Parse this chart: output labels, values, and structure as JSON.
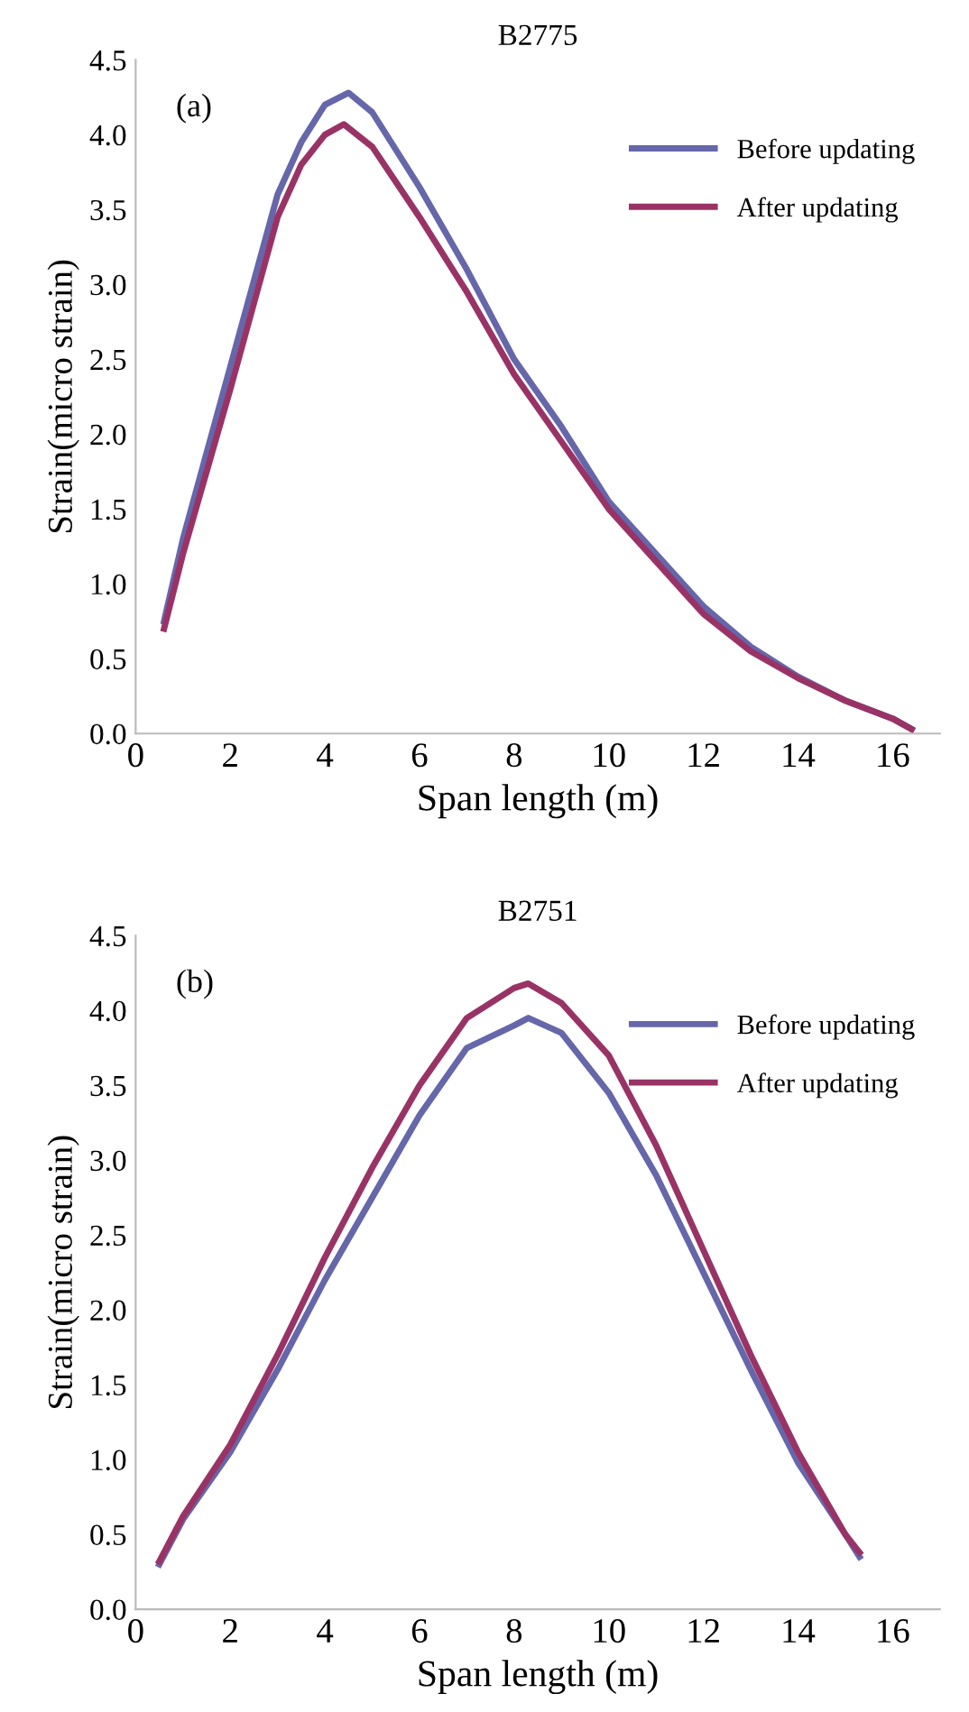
{
  "chart_data": [
    {
      "type": "line",
      "title": "B2775",
      "xlabel": "Span length (m)",
      "ylabel": "Strain(micro strain)",
      "annotations": [
        "(a)"
      ],
      "xlim": [
        0,
        17
      ],
      "xticks": [
        0,
        2,
        4,
        6,
        8,
        10,
        12,
        14,
        16
      ],
      "ylim": [
        0,
        4.5
      ],
      "yticks": [
        {
          "value": 0,
          "label": "0.0"
        },
        {
          "value": 0.5,
          "label": "0.5"
        },
        {
          "value": 1,
          "label": "1.0"
        },
        {
          "value": 1.5,
          "label": "1.5"
        },
        {
          "value": 2,
          "label": "2.0"
        },
        {
          "value": 2.5,
          "label": "2.5"
        },
        {
          "value": 3,
          "label": "3.0"
        },
        {
          "value": 3.5,
          "label": "3.5"
        },
        {
          "value": 4,
          "label": "4.0"
        },
        {
          "value": 4.5,
          "label": "4.5"
        }
      ],
      "grid": false,
      "legend": "top right",
      "marker": "none",
      "line_style": "solid",
      "series": [
        {
          "name": "Before updating",
          "color": "#6666aa",
          "x": [
            0.6,
            1,
            2,
            3,
            3.5,
            4,
            4.5,
            5,
            6,
            7,
            8,
            9,
            10,
            11,
            12,
            13,
            14,
            15,
            16,
            16.4
          ],
          "values": [
            0.75,
            1.3,
            2.45,
            3.6,
            3.95,
            4.2,
            4.28,
            4.15,
            3.65,
            3.1,
            2.5,
            2.05,
            1.55,
            1.2,
            0.85,
            0.58,
            0.38,
            0.22,
            0.1,
            0.03
          ]
        },
        {
          "name": "After updating",
          "color": "#993366",
          "x": [
            0.6,
            1,
            2,
            3,
            3.5,
            4,
            4.4,
            5,
            6,
            7,
            8,
            9,
            10,
            11,
            12,
            13,
            14,
            15,
            16,
            16.4
          ],
          "values": [
            0.7,
            1.2,
            2.3,
            3.45,
            3.8,
            4.0,
            4.07,
            3.92,
            3.45,
            2.95,
            2.4,
            1.95,
            1.5,
            1.15,
            0.8,
            0.55,
            0.37,
            0.22,
            0.1,
            0.03
          ]
        }
      ]
    },
    {
      "type": "line",
      "title": "B2751",
      "xlabel": "Span length (m)",
      "ylabel": "Strain(micro strain)",
      "annotations": [
        "(b)"
      ],
      "xlim": [
        0,
        17
      ],
      "xticks": [
        0,
        2,
        4,
        6,
        8,
        10,
        12,
        14,
        16
      ],
      "ylim": [
        0,
        4.5
      ],
      "yticks": [
        {
          "value": 0,
          "label": "0.0"
        },
        {
          "value": 0.5,
          "label": "0.5"
        },
        {
          "value": 1,
          "label": "1.0"
        },
        {
          "value": 1.5,
          "label": "1.5"
        },
        {
          "value": 2,
          "label": "2.0"
        },
        {
          "value": 2.5,
          "label": "2.5"
        },
        {
          "value": 3,
          "label": "3.0"
        },
        {
          "value": 3.5,
          "label": "3.5"
        },
        {
          "value": 4,
          "label": "4.0"
        },
        {
          "value": 4.5,
          "label": "4.5"
        }
      ],
      "grid": false,
      "legend": "top right",
      "marker": "none",
      "line_style": "solid",
      "series": [
        {
          "name": "Before updating",
          "color": "#6666aa",
          "x": [
            0.5,
            1,
            2,
            3,
            4,
            5,
            6,
            7,
            8,
            8.3,
            9,
            10,
            11,
            12,
            13,
            14,
            15,
            15.3
          ],
          "values": [
            0.3,
            0.6,
            1.05,
            1.6,
            2.2,
            2.75,
            3.3,
            3.75,
            3.9,
            3.95,
            3.85,
            3.45,
            2.9,
            2.25,
            1.6,
            0.98,
            0.5,
            0.35
          ]
        },
        {
          "name": "After updating",
          "color": "#993366",
          "x": [
            0.5,
            1,
            2,
            3,
            4,
            5,
            6,
            7,
            8,
            8.3,
            9,
            10,
            11,
            12,
            13,
            14,
            15,
            15.3
          ],
          "values": [
            0.32,
            0.62,
            1.1,
            1.7,
            2.35,
            2.95,
            3.5,
            3.95,
            4.15,
            4.18,
            4.05,
            3.7,
            3.1,
            2.4,
            1.7,
            1.05,
            0.5,
            0.38
          ]
        }
      ]
    }
  ]
}
